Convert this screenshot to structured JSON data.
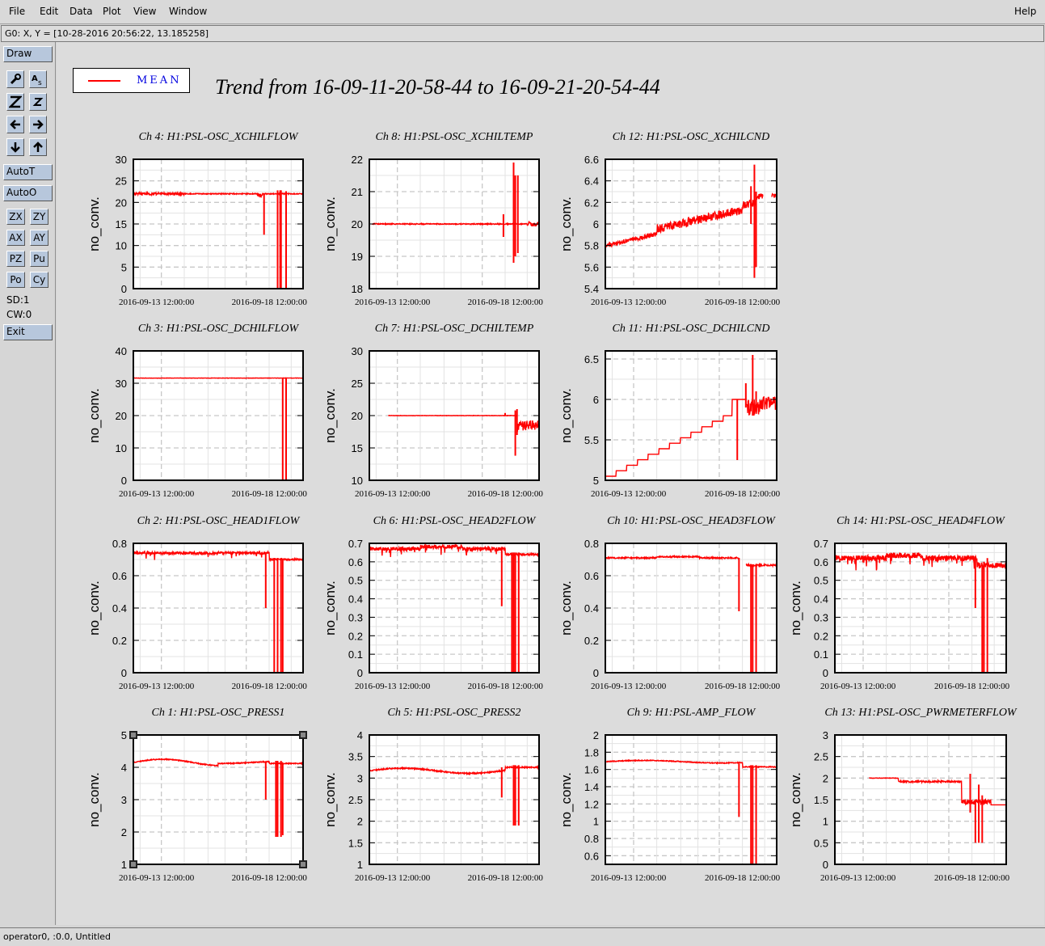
{
  "menu": {
    "file": "File",
    "edit": "Edit",
    "data": "Data",
    "plot": "Plot",
    "view": "View",
    "window": "Window",
    "help": "Help"
  },
  "status_line": "G0: X, Y = [10-28-2016 20:56:22, 13.185258]",
  "toolbar": {
    "draw": "Draw",
    "autot": "AutoT",
    "autoo": "AutoO",
    "zx": "ZX",
    "zy": "ZY",
    "ax": "AX",
    "ay": "AY",
    "pz": "PZ",
    "pu": "Pu",
    "po": "Po",
    "cy": "Cy",
    "sd": "SD:1",
    "cw": "CW:0",
    "exit": "Exit"
  },
  "legend": {
    "label": "MEAN",
    "color": "#ff0000"
  },
  "title": "Trend from 16-09-11-20-58-44 to 16-09-21-20-54-44",
  "bottom_status": "operator0, :0.0, Untitled",
  "chart_data": [
    {
      "type": "line",
      "title": "Ch 4: H1:PSL-OSC_XCHILFLOW",
      "ylabel": "no_conv.",
      "ylim": [
        0,
        30
      ],
      "yticks": [
        "0",
        "5",
        "10",
        "15",
        "20",
        "25",
        "30"
      ],
      "xticks": [
        "2016-09-13 12:00:00",
        "2016-09-18 12:00:00"
      ],
      "grid": true,
      "kind": "flow"
    },
    {
      "type": "line",
      "title": "Ch 8: H1:PSL-OSC_XCHILTEMP",
      "ylabel": "no_conv.",
      "ylim": [
        18,
        22
      ],
      "yticks": [
        "18",
        "19",
        "20",
        "21",
        "22"
      ],
      "xticks": [
        "2016-09-13 12:00:00",
        "2016-09-18 12:00:00"
      ],
      "grid": true,
      "kind": "temp"
    },
    {
      "type": "line",
      "title": "Ch 12: H1:PSL-OSC_XCHILCND",
      "ylabel": "no_conv.",
      "ylim": [
        5.4,
        6.6
      ],
      "yticks": [
        "5.4",
        "5.6",
        "5.8",
        "6",
        "6.2",
        "6.4",
        "6.6"
      ],
      "xticks": [
        "2016-09-13 12:00:00",
        "2016-09-18 12:00:00"
      ],
      "grid": true,
      "kind": "cnd"
    },
    {
      "type": "line",
      "title": "Ch 3: H1:PSL-OSC_DCHILFLOW",
      "ylabel": "no_conv.",
      "ylim": [
        0,
        40
      ],
      "yticks": [
        "0",
        "10",
        "20",
        "30",
        "40"
      ],
      "xticks": [
        "2016-09-13 12:00:00",
        "2016-09-18 12:00:00"
      ],
      "grid": true,
      "kind": "dflow"
    },
    {
      "type": "line",
      "title": "Ch 7: H1:PSL-OSC_DCHILTEMP",
      "ylabel": "no_conv.",
      "ylim": [
        10,
        30
      ],
      "yticks": [
        "10",
        "15",
        "20",
        "25",
        "30"
      ],
      "xticks": [
        "2016-09-13 12:00:00",
        "2016-09-18 12:00:00"
      ],
      "grid": true,
      "kind": "dtemp"
    },
    {
      "type": "line",
      "title": "Ch 11: H1:PSL-OSC_DCHILCND",
      "ylabel": "no_conv.",
      "ylim": [
        5,
        6.6
      ],
      "yticks": [
        "5",
        "5.5",
        "6",
        "6.5"
      ],
      "xticks": [
        "2016-09-13 12:00:00",
        "2016-09-18 12:00:00"
      ],
      "grid": true,
      "kind": "dcnd"
    },
    {
      "type": "line",
      "title": "Ch 2: H1:PSL-OSC_HEAD1FLOW",
      "ylabel": "no_conv.",
      "ylim": [
        0,
        0.8
      ],
      "yticks": [
        "0",
        "0.2",
        "0.4",
        "0.6",
        "0.8"
      ],
      "xticks": [
        "2016-09-13 12:00:00",
        "2016-09-18 12:00:00"
      ],
      "grid": true,
      "kind": "head1"
    },
    {
      "type": "line",
      "title": "Ch 6: H1:PSL-OSC_HEAD2FLOW",
      "ylabel": "no_conv.",
      "ylim": [
        0,
        0.7
      ],
      "yticks": [
        "0",
        "0.1",
        "0.2",
        "0.3",
        "0.4",
        "0.5",
        "0.6",
        "0.7"
      ],
      "xticks": [
        "2016-09-13 12:00:00",
        "2016-09-18 12:00:00"
      ],
      "grid": true,
      "kind": "head2"
    },
    {
      "type": "line",
      "title": "Ch 10: H1:PSL-OSC_HEAD3FLOW",
      "ylabel": "no_conv.",
      "ylim": [
        0,
        0.8
      ],
      "yticks": [
        "0",
        "0.2",
        "0.4",
        "0.6",
        "0.8"
      ],
      "xticks": [
        "2016-09-13 12:00:00",
        "2016-09-18 12:00:00"
      ],
      "grid": true,
      "kind": "head3"
    },
    {
      "type": "line",
      "title": "Ch 14: H1:PSL-OSC_HEAD4FLOW",
      "ylabel": "no_conv.",
      "ylim": [
        0,
        0.7
      ],
      "yticks": [
        "0",
        "0.1",
        "0.2",
        "0.3",
        "0.4",
        "0.5",
        "0.6",
        "0.7"
      ],
      "xticks": [
        "2016-09-13 12:00:00",
        "2016-09-18 12:00:00"
      ],
      "grid": true,
      "kind": "head4"
    },
    {
      "type": "line",
      "title": "Ch 1: H1:PSL-OSC_PRESS1",
      "ylabel": "no_conv.",
      "ylim": [
        1,
        5
      ],
      "yticks": [
        "1",
        "2",
        "3",
        "4",
        "5"
      ],
      "xticks": [
        "2016-09-13 12:00:00",
        "2016-09-18 12:00:00"
      ],
      "grid": true,
      "kind": "press1",
      "selected": true
    },
    {
      "type": "line",
      "title": "Ch 5: H1:PSL-OSC_PRESS2",
      "ylabel": "no_conv.",
      "ylim": [
        1,
        4
      ],
      "yticks": [
        "1",
        "1.5",
        "2",
        "2.5",
        "3",
        "3.5",
        "4"
      ],
      "xticks": [
        "2016-09-13 12:00:00",
        "2016-09-18 12:00:00"
      ],
      "grid": true,
      "kind": "press2"
    },
    {
      "type": "line",
      "title": "Ch 9: H1:PSL-AMP_FLOW",
      "ylabel": "no_conv.",
      "ylim": [
        0.5,
        2
      ],
      "yticks": [
        "0.6",
        "0.8",
        "1",
        "1.2",
        "1.4",
        "1.6",
        "1.8",
        "2"
      ],
      "xticks": [
        "2016-09-13 12:00:00",
        "2016-09-18 12:00:00"
      ],
      "grid": true,
      "kind": "ampflow"
    },
    {
      "type": "line",
      "title": "Ch 13: H1:PSL-OSC_PWRMETERFLOW",
      "ylabel": "no_conv.",
      "ylim": [
        0,
        3
      ],
      "yticks": [
        "0",
        "0.5",
        "1",
        "1.5",
        "2",
        "2.5",
        "3"
      ],
      "xticks": [
        "2016-09-13 12:00:00",
        "2016-09-18 12:00:00"
      ],
      "grid": true,
      "kind": "pwr"
    }
  ]
}
